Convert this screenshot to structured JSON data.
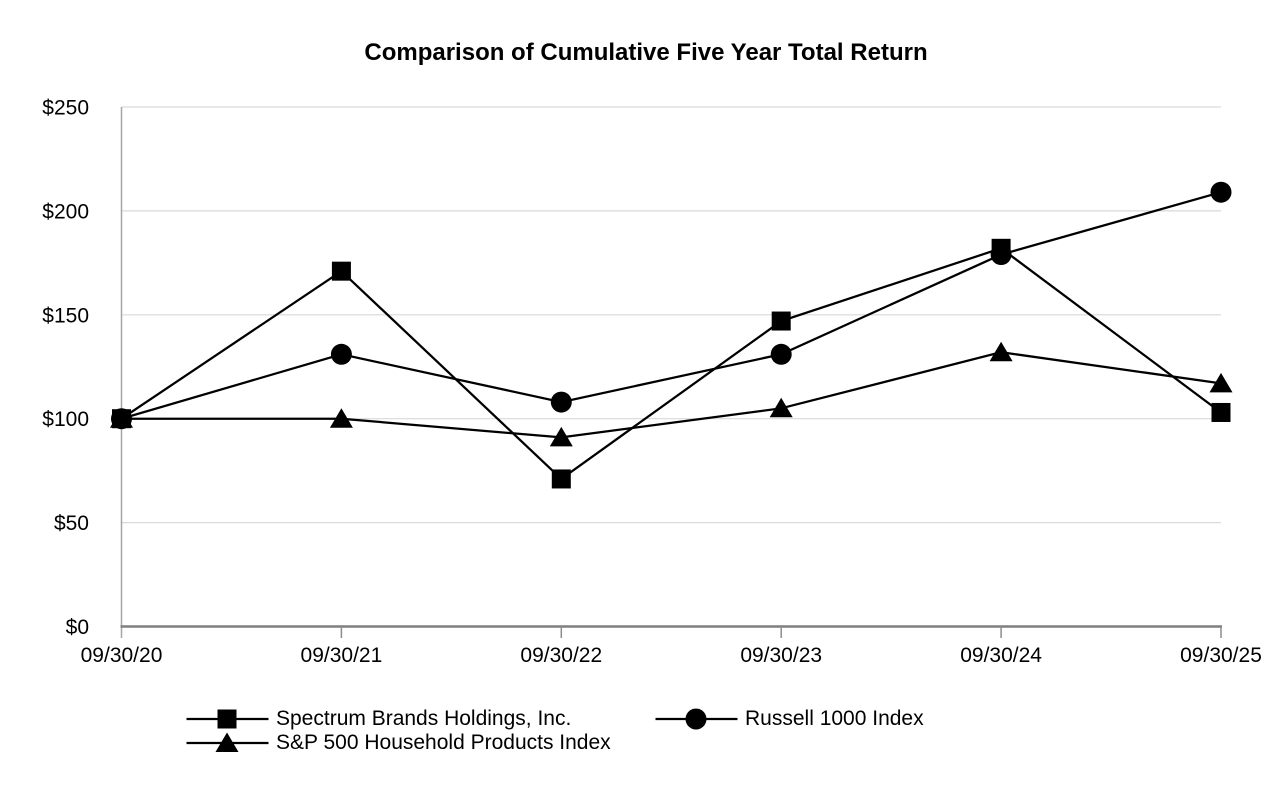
{
  "chart_data": {
    "type": "line",
    "title": "Comparison of Cumulative Five Year Total Return",
    "categories": [
      "09/30/20",
      "09/30/21",
      "09/30/22",
      "09/30/23",
      "09/30/24",
      "09/30/25"
    ],
    "series": [
      {
        "name": "Spectrum Brands Holdings, Inc.",
        "marker": "square",
        "values": [
          100,
          171,
          71,
          147,
          182,
          103
        ]
      },
      {
        "name": "Russell 1000 Index",
        "marker": "circle",
        "values": [
          100,
          131,
          108,
          131,
          179,
          209
        ]
      },
      {
        "name": "S&P 500 Household Products Index",
        "marker": "triangle",
        "values": [
          100,
          100,
          91,
          105,
          132,
          117
        ]
      }
    ],
    "y_axis": {
      "tick_labels": [
        "$0",
        "$50",
        "$100",
        "$150",
        "$200",
        "$250"
      ],
      "tick_values": [
        0,
        50,
        100,
        150,
        200,
        250
      ],
      "min": 0,
      "max": 250
    },
    "xlabel": "",
    "ylabel": "",
    "ylim": [
      0,
      250
    ],
    "grid": "horizontal-only",
    "legend_position": "bottom",
    "colors": {
      "series_line": "#000000",
      "marker_fill": "#000000",
      "gridline": "#d9d9d9",
      "bottom_axis": "#7f7f7f",
      "left_axis": "#a6a6a6",
      "tick_mark": "#8c8c8c",
      "text": "#000000",
      "background": "#ffffff"
    }
  }
}
